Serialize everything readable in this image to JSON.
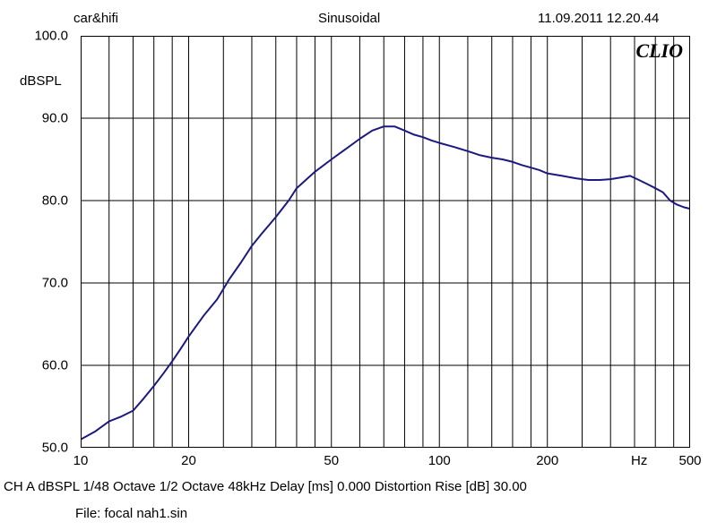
{
  "header": {
    "left": "car&hifi",
    "center": "Sinusoidal",
    "right": "11.09.2011 12.20.44"
  },
  "brand": {
    "text": "CLIO",
    "fontsize": 22
  },
  "chart": {
    "type": "line",
    "x_scale": "log",
    "xlim": [
      10,
      500
    ],
    "ylim": [
      50,
      100
    ],
    "ytick_step": 10,
    "yticks": [
      50.0,
      60.0,
      70.0,
      80.0,
      90.0,
      100.0
    ],
    "ytick_labels": [
      "50.0",
      "60.0",
      "70.0",
      "80.0",
      "90.0",
      "100.0"
    ],
    "yaxis_label": "dBSPL",
    "xticks_major": [
      10,
      20,
      50,
      100,
      200,
      500
    ],
    "xtick_labels": [
      "10",
      "20",
      "50",
      "100",
      "200",
      "500"
    ],
    "xaxis_label": "Hz",
    "x_gridlines": [
      10,
      12,
      14,
      16,
      18,
      20,
      25,
      30,
      35,
      40,
      45,
      50,
      60,
      70,
      80,
      90,
      100,
      120,
      140,
      160,
      180,
      200,
      250,
      300,
      350,
      400,
      450,
      500
    ],
    "background_color": "#ffffff",
    "grid_color": "#000000",
    "grid_width_minor": 1,
    "grid_width_major": 1,
    "line_color": "#1a1a80",
    "line_width": 2,
    "text_color": "#000000",
    "tick_fontsize": 15,
    "data": {
      "x": [
        10,
        11,
        12,
        13,
        14,
        15,
        16,
        17,
        18,
        19,
        20,
        22,
        24,
        26,
        28,
        30,
        32,
        35,
        38,
        40,
        45,
        50,
        55,
        60,
        65,
        70,
        75,
        80,
        85,
        90,
        95,
        100,
        110,
        120,
        130,
        140,
        150,
        160,
        170,
        180,
        190,
        200,
        220,
        240,
        260,
        280,
        300,
        320,
        340,
        360,
        380,
        400,
        420,
        440,
        460,
        480,
        500
      ],
      "y": [
        51.0,
        52.0,
        53.2,
        53.8,
        54.5,
        56.0,
        57.5,
        59.0,
        60.5,
        62.0,
        63.5,
        66.0,
        68.0,
        70.5,
        72.5,
        74.5,
        76.0,
        78.0,
        80.0,
        81.5,
        83.5,
        85.0,
        86.3,
        87.5,
        88.5,
        89.0,
        89.0,
        88.5,
        88.0,
        87.7,
        87.3,
        87.0,
        86.5,
        86.0,
        85.5,
        85.2,
        85.0,
        84.7,
        84.3,
        84.0,
        83.7,
        83.3,
        83.0,
        82.7,
        82.5,
        82.5,
        82.6,
        82.8,
        83.0,
        82.5,
        82.0,
        81.5,
        81.0,
        80.0,
        79.5,
        79.2,
        79.0
      ]
    }
  },
  "footer": {
    "row1": "CH A   dBSPL   1/48 Octave   1/2 Octave   48kHz   Delay [ms] 0.000   Distortion Rise [dB] 30.00",
    "row2": "File: focal nah1.sin"
  }
}
